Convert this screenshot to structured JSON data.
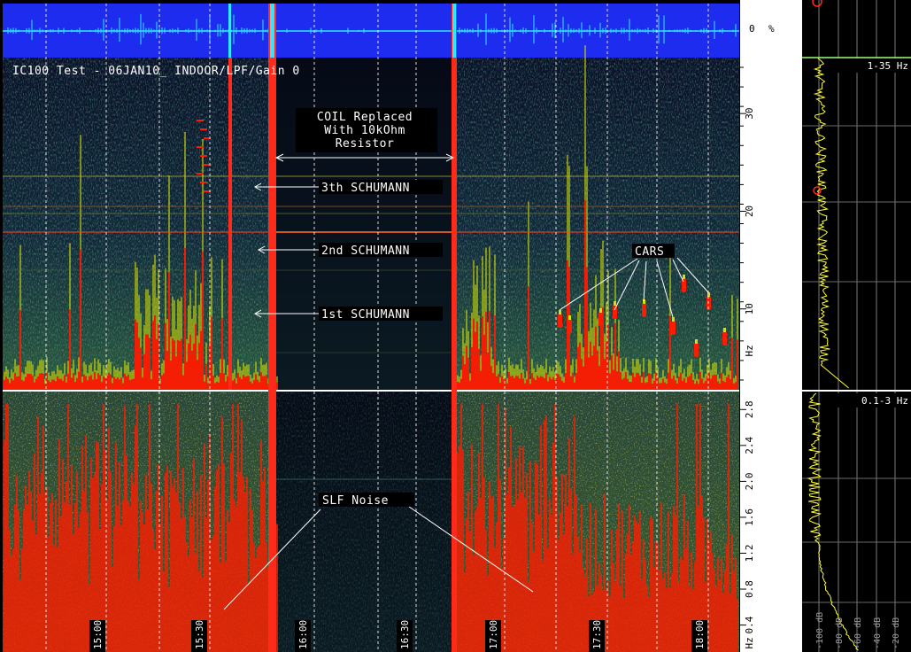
{
  "header": {
    "title": "IC100 Test - 06JAN10_ INDOOR/LPF/Gain 0"
  },
  "colors": {
    "waveform_bg": "#1e2cf0",
    "waveform_line": "#2ee8ff",
    "spectrogram_bg": "#0a1230",
    "hot": "#ff1a00",
    "warm": "#d8e000",
    "spectrum_line": "#ffff33",
    "marker": "#ff2a1a"
  },
  "annotations": {
    "coil": [
      "COIL Replaced",
      "With 10kOhm",
      "Resistor"
    ],
    "schumann_3": "3th SCHUMANN",
    "schumann_2": "2nd SCHUMANN",
    "schumann_1": "1st SCHUMANN",
    "cars": "CARS",
    "slf": "SLF Noise"
  },
  "right_panel": {
    "upper_band": "1-35 Hz",
    "lower_band": "0.1-3 Hz",
    "db_labels": [
      "-100 dB",
      "-80 dB",
      "-60 dB",
      "-40 dB",
      "-20 dB"
    ]
  },
  "chart_data": [
    {
      "type": "heatmap",
      "name": "waveform",
      "ylabel": "%",
      "ytick_labels": [
        "0"
      ]
    },
    {
      "type": "heatmap",
      "name": "spectrogram-1-35hz",
      "x_tick_labels": [
        "15:00",
        "15:30",
        "16:00",
        "16:30",
        "17:00",
        "17:30",
        "18:00"
      ],
      "y_unit": "Hz",
      "y_ticks": [
        {
          "value": 30,
          "label": "30"
        },
        {
          "value": 20,
          "label": "20"
        },
        {
          "value": 10,
          "label": "10"
        }
      ],
      "ylim": [
        1,
        35
      ],
      "grid": true
    },
    {
      "type": "heatmap",
      "name": "spectrogram-0.1-3hz",
      "x_tick_labels": [
        "15:00",
        "15:30",
        "16:00",
        "16:30",
        "17:00",
        "17:30",
        "18:00"
      ],
      "y_unit": "Hz",
      "y_ticks": [
        {
          "value": 2.8,
          "label": "2.8"
        },
        {
          "value": 2.4,
          "label": "2.4"
        },
        {
          "value": 2.0,
          "label": "2.0"
        },
        {
          "value": 1.6,
          "label": "1.6"
        },
        {
          "value": 1.2,
          "label": "1.2"
        },
        {
          "value": 0.8,
          "label": "0.8"
        },
        {
          "value": 0.4,
          "label": "0.4"
        }
      ],
      "ylim": [
        0.1,
        3
      ],
      "grid": true
    }
  ]
}
